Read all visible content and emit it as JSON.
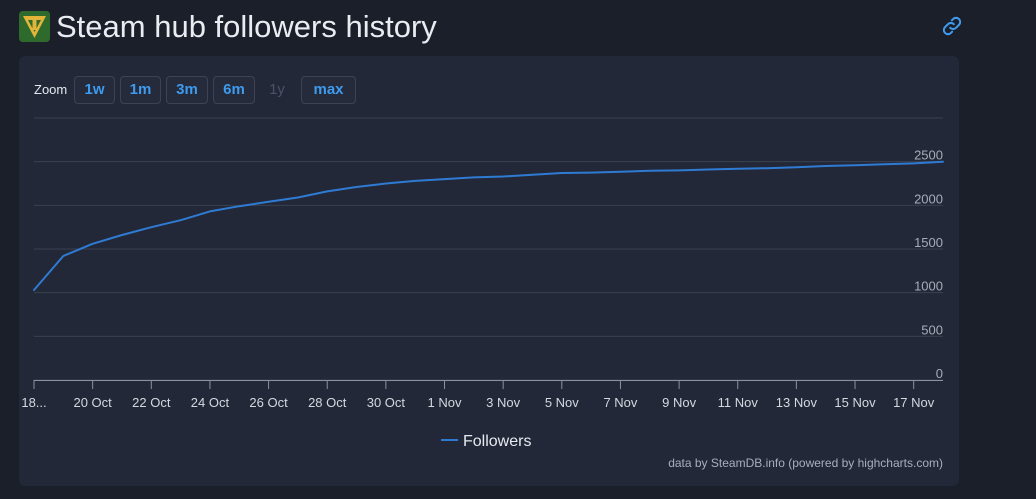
{
  "header": {
    "title": "Steam hub followers history",
    "logo_icon": "app-logo-icon",
    "link_icon": "link-icon"
  },
  "zoom": {
    "label": "Zoom",
    "buttons": [
      {
        "label": "1w",
        "enabled": true
      },
      {
        "label": "1m",
        "enabled": true
      },
      {
        "label": "3m",
        "enabled": true
      },
      {
        "label": "6m",
        "enabled": true
      },
      {
        "label": "1y",
        "enabled": false
      },
      {
        "label": "max",
        "enabled": true
      }
    ]
  },
  "colors": {
    "accent": "#3d9bf0",
    "series": "#2f7bd4",
    "background": "#1b1f2a",
    "panel": "#222837",
    "grid": "#3a4150"
  },
  "chart_data": {
    "type": "line",
    "title": "",
    "xlabel": "",
    "ylabel": "",
    "ylim": [
      0,
      3000
    ],
    "yticks": [
      0,
      500,
      1000,
      1500,
      2000,
      2500
    ],
    "grid": true,
    "legend_position": "bottom-center",
    "xlim": [
      "2023-10-18",
      "2023-11-18"
    ],
    "xticks": [
      {
        "date": "2023-10-18",
        "label": "18..."
      },
      {
        "date": "2023-10-20",
        "label": "20 Oct"
      },
      {
        "date": "2023-10-22",
        "label": "22 Oct"
      },
      {
        "date": "2023-10-24",
        "label": "24 Oct"
      },
      {
        "date": "2023-10-26",
        "label": "26 Oct"
      },
      {
        "date": "2023-10-28",
        "label": "28 Oct"
      },
      {
        "date": "2023-10-30",
        "label": "30 Oct"
      },
      {
        "date": "2023-11-01",
        "label": "1 Nov"
      },
      {
        "date": "2023-11-03",
        "label": "3 Nov"
      },
      {
        "date": "2023-11-05",
        "label": "5 Nov"
      },
      {
        "date": "2023-11-07",
        "label": "7 Nov"
      },
      {
        "date": "2023-11-09",
        "label": "9 Nov"
      },
      {
        "date": "2023-11-11",
        "label": "11 Nov"
      },
      {
        "date": "2023-11-13",
        "label": "13 Nov"
      },
      {
        "date": "2023-11-15",
        "label": "15 Nov"
      },
      {
        "date": "2023-11-17",
        "label": "17 Nov"
      }
    ],
    "series": [
      {
        "name": "Followers",
        "color": "#2f7bd4",
        "points": [
          {
            "x": "2023-10-18",
            "y": 1030
          },
          {
            "x": "2023-10-19",
            "y": 1420
          },
          {
            "x": "2023-10-20",
            "y": 1560
          },
          {
            "x": "2023-10-21",
            "y": 1660
          },
          {
            "x": "2023-10-22",
            "y": 1750
          },
          {
            "x": "2023-10-23",
            "y": 1830
          },
          {
            "x": "2023-10-24",
            "y": 1930
          },
          {
            "x": "2023-10-25",
            "y": 1990
          },
          {
            "x": "2023-10-26",
            "y": 2040
          },
          {
            "x": "2023-10-27",
            "y": 2090
          },
          {
            "x": "2023-10-28",
            "y": 2160
          },
          {
            "x": "2023-10-29",
            "y": 2210
          },
          {
            "x": "2023-10-30",
            "y": 2250
          },
          {
            "x": "2023-10-31",
            "y": 2280
          },
          {
            "x": "2023-11-01",
            "y": 2300
          },
          {
            "x": "2023-11-02",
            "y": 2320
          },
          {
            "x": "2023-11-03",
            "y": 2330
          },
          {
            "x": "2023-11-04",
            "y": 2350
          },
          {
            "x": "2023-11-05",
            "y": 2370
          },
          {
            "x": "2023-11-06",
            "y": 2375
          },
          {
            "x": "2023-11-07",
            "y": 2385
          },
          {
            "x": "2023-11-08",
            "y": 2395
          },
          {
            "x": "2023-11-09",
            "y": 2400
          },
          {
            "x": "2023-11-10",
            "y": 2410
          },
          {
            "x": "2023-11-11",
            "y": 2420
          },
          {
            "x": "2023-11-12",
            "y": 2425
          },
          {
            "x": "2023-11-13",
            "y": 2435
          },
          {
            "x": "2023-11-14",
            "y": 2450
          },
          {
            "x": "2023-11-15",
            "y": 2460
          },
          {
            "x": "2023-11-16",
            "y": 2470
          },
          {
            "x": "2023-11-17",
            "y": 2480
          },
          {
            "x": "2023-11-18",
            "y": 2500
          }
        ]
      }
    ]
  },
  "legend": {
    "items": [
      {
        "label": "Followers"
      }
    ]
  },
  "credits": "data by SteamDB.info (powered by highcharts.com)"
}
